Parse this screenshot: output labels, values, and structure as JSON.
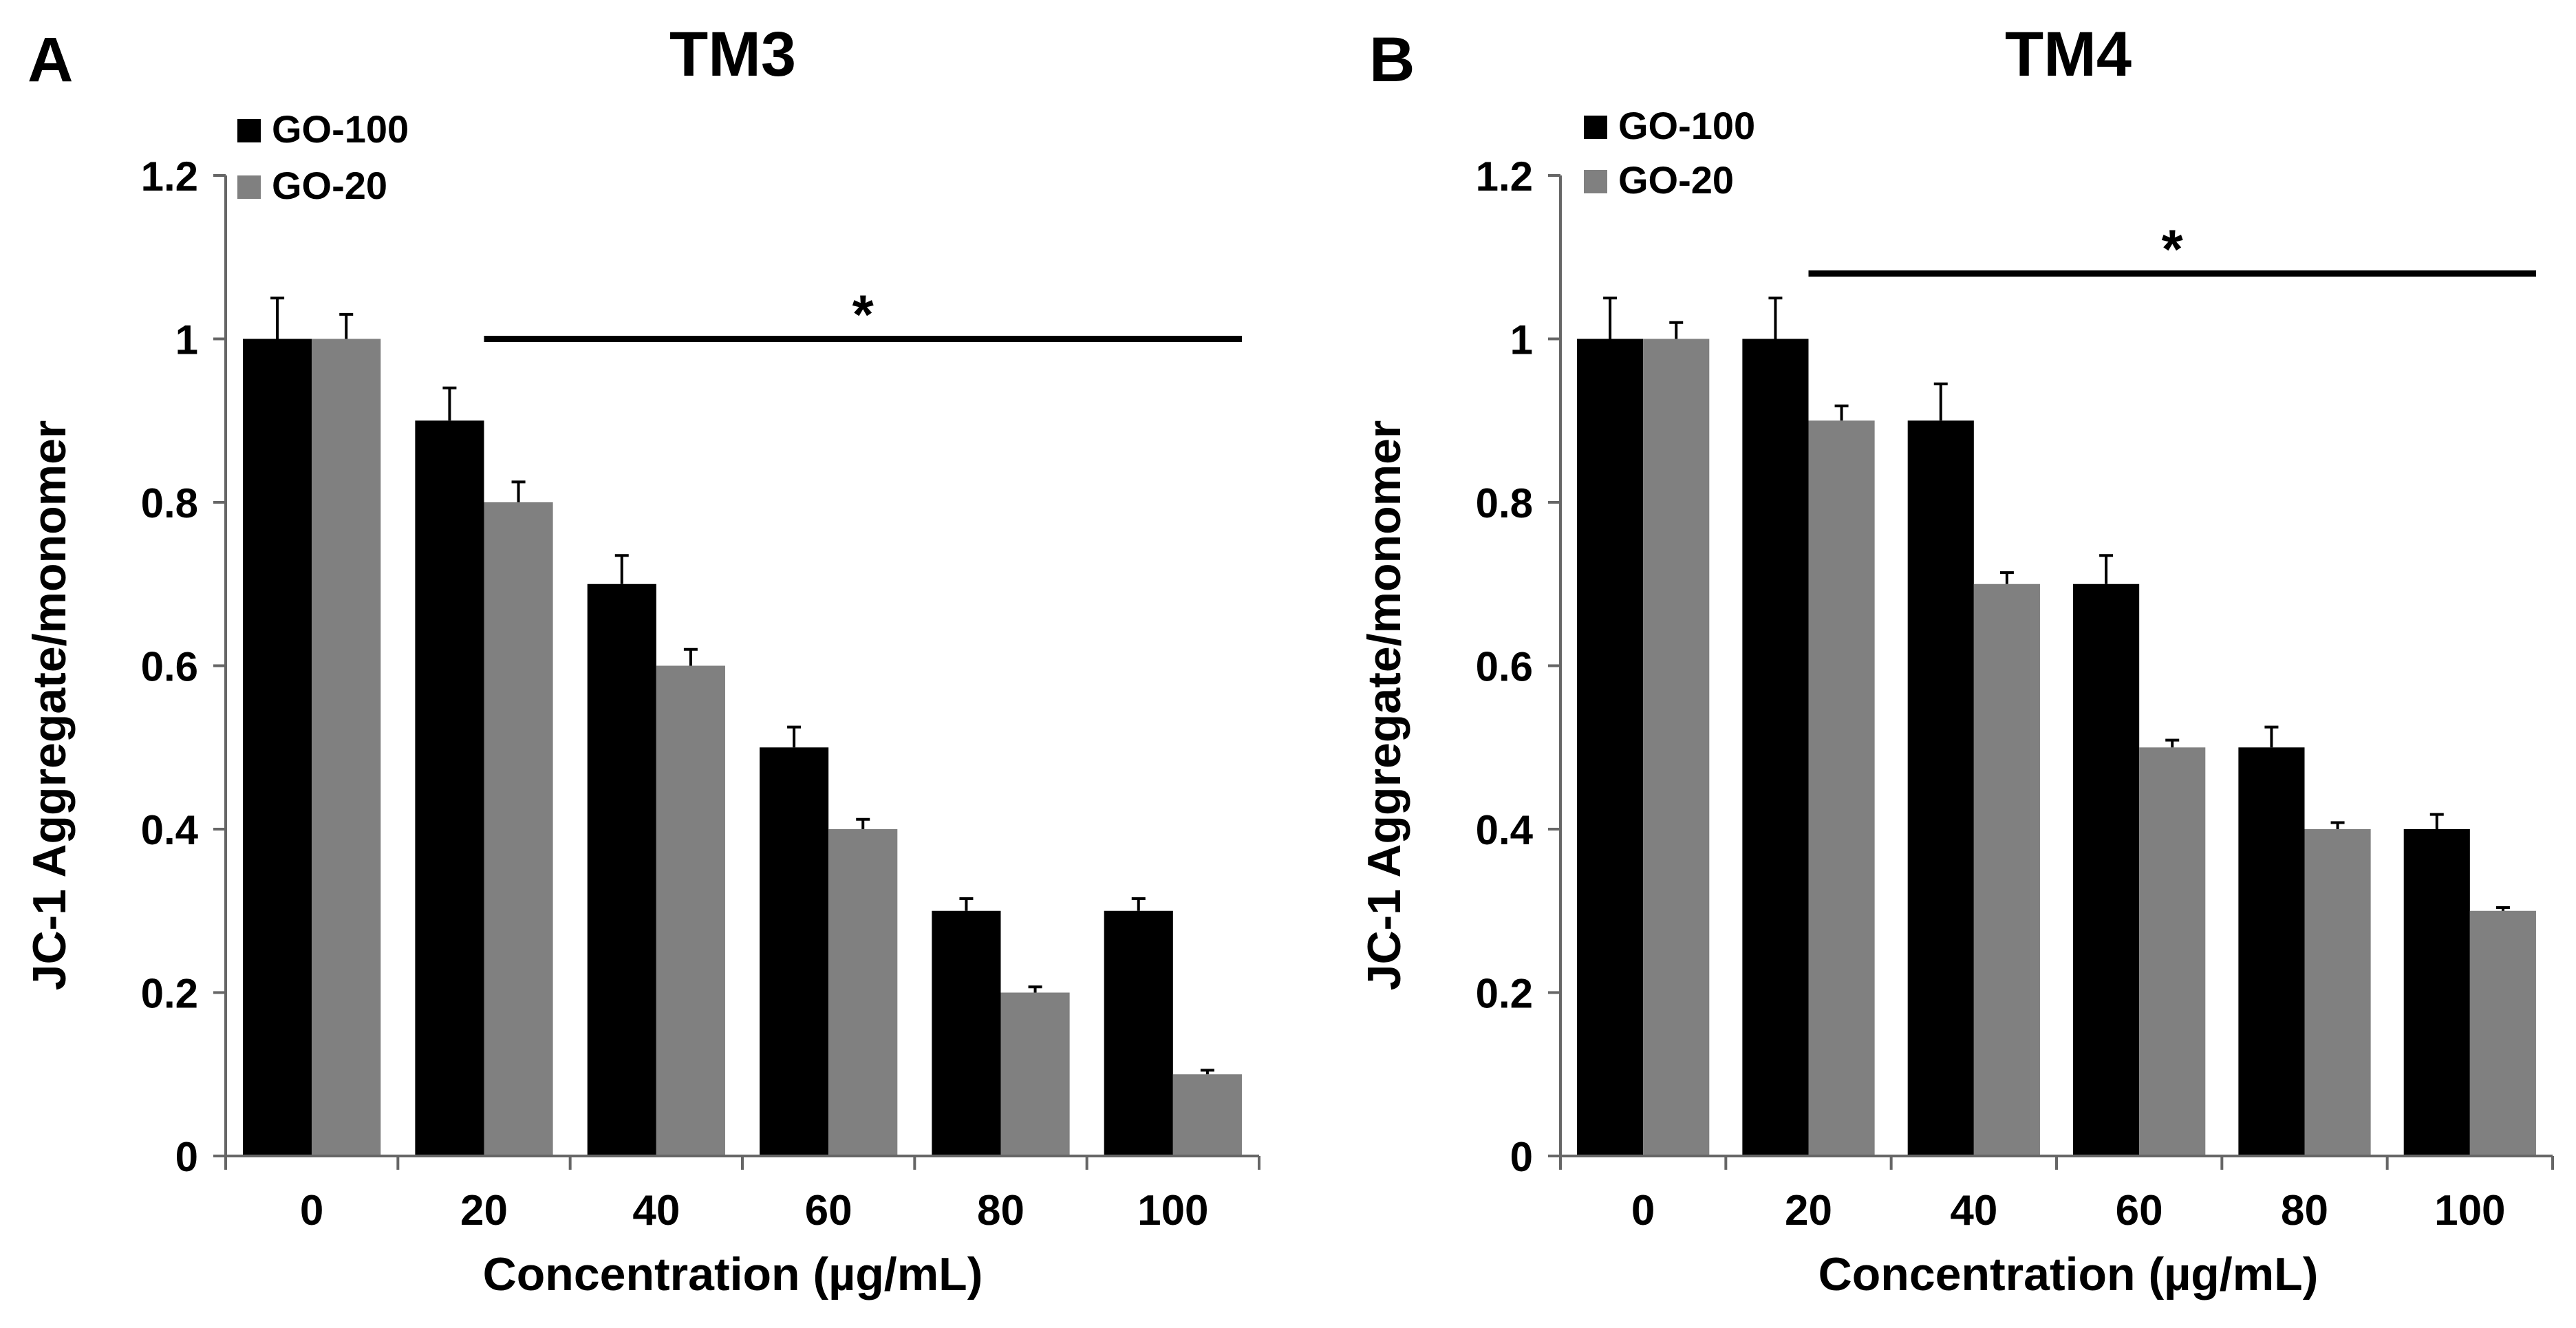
{
  "figure": {
    "panels": [
      {
        "letter": "A"
      },
      {
        "letter": "B"
      }
    ]
  },
  "chart_data": [
    {
      "type": "bar",
      "title": "TM3",
      "xlabel": "Concentration (µg/mL)",
      "ylabel": "JC-1 Aggregate/monomer",
      "categories": [
        "0",
        "20",
        "40",
        "60",
        "80",
        "100"
      ],
      "ylim": [
        0,
        1.2
      ],
      "yticks": [
        "0",
        "0.2",
        "0.4",
        "0.6",
        "0.8",
        "1",
        "1.2"
      ],
      "grid": false,
      "legend_position": "top-left",
      "series": [
        {
          "name": "GO-100",
          "color": "#000000",
          "values": [
            1.0,
            0.9,
            0.7,
            0.5,
            0.3,
            0.3
          ],
          "errors": [
            0.05,
            0.04,
            0.035,
            0.025,
            0.015,
            0.015
          ]
        },
        {
          "name": "GO-20",
          "color": "#808080",
          "values": [
            1.0,
            0.8,
            0.6,
            0.4,
            0.2,
            0.1
          ],
          "errors": [
            0.03,
            0.025,
            0.02,
            0.012,
            0.007,
            0.005
          ]
        }
      ],
      "significance": {
        "label": "*",
        "from_category": "20",
        "to_category": "100",
        "level": 1.0
      }
    },
    {
      "type": "bar",
      "title": "TM4",
      "xlabel": "Concentration (µg/mL)",
      "ylabel": "JC-1 Aggregate/monomer",
      "categories": [
        "0",
        "20",
        "40",
        "60",
        "80",
        "100"
      ],
      "ylim": [
        0,
        1.2
      ],
      "yticks": [
        "0",
        "0.2",
        "0.4",
        "0.6",
        "0.8",
        "1",
        "1.2"
      ],
      "grid": false,
      "legend_position": "top-left",
      "series": [
        {
          "name": "GO-100",
          "color": "#000000",
          "values": [
            1.0,
            1.0,
            0.9,
            0.7,
            0.5,
            0.4
          ],
          "errors": [
            0.05,
            0.05,
            0.045,
            0.035,
            0.025,
            0.018
          ]
        },
        {
          "name": "GO-20",
          "color": "#808080",
          "values": [
            1.0,
            0.9,
            0.7,
            0.5,
            0.4,
            0.3
          ],
          "errors": [
            0.02,
            0.018,
            0.014,
            0.009,
            0.008,
            0.004
          ]
        }
      ],
      "significance": {
        "label": "*",
        "from_category": "20",
        "to_category": "100",
        "level": 1.08
      }
    }
  ]
}
